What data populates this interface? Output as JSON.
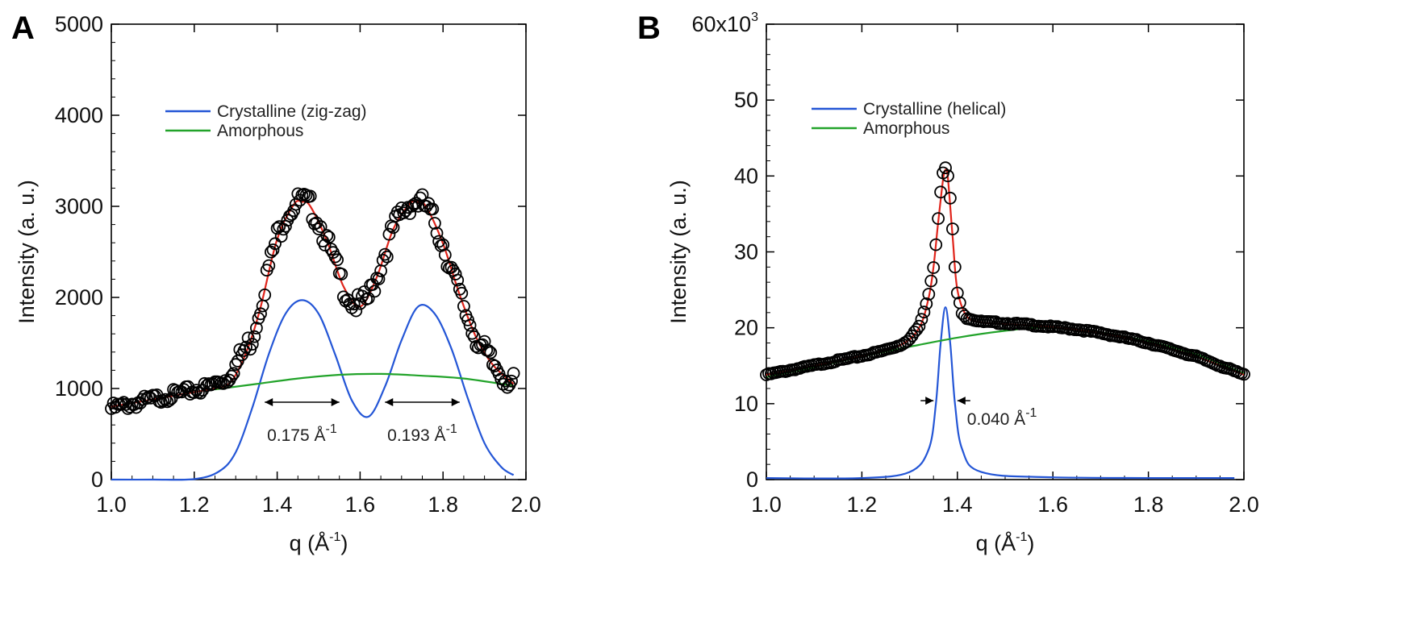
{
  "chart_data": [
    {
      "panel": "A",
      "type": "scatter",
      "xlabel": "q (Å",
      "xlabel_sup": "-1",
      "xlabel_close": ")",
      "ylabel": "Intensity (a. u.)",
      "xlim": [
        1.0,
        2.0
      ],
      "ylim": [
        0,
        5000
      ],
      "xticks": [
        1.0,
        1.2,
        1.4,
        1.6,
        1.8,
        2.0
      ],
      "xtick_labels": [
        "1.0",
        "1.2",
        "1.4",
        "1.6",
        "1.8",
        "2.0"
      ],
      "yticks": [
        0,
        1000,
        2000,
        3000,
        4000,
        5000
      ],
      "ytick_labels": [
        "0",
        "1000",
        "2000",
        "3000",
        "4000",
        "5000"
      ],
      "legend": {
        "placement": "upper-left",
        "entries": [
          {
            "label": "Crystalline (zig-zag)",
            "color": "#2456d6"
          },
          {
            "label": "Amorphous",
            "color": "#22a32a"
          }
        ]
      },
      "series": [
        {
          "kind": "data",
          "marker": "open-circle",
          "color": "#000000",
          "x": [
            1.0,
            1.02,
            1.04,
            1.06,
            1.08,
            1.1,
            1.12,
            1.14,
            1.16,
            1.18,
            1.2,
            1.22,
            1.24,
            1.26,
            1.28,
            1.34,
            1.36,
            1.38,
            1.4,
            1.42,
            1.44,
            1.46,
            1.48,
            1.5,
            1.52,
            1.54,
            1.56,
            1.58,
            1.6,
            1.62,
            1.64,
            1.66,
            1.68,
            1.7,
            1.72,
            1.74,
            1.76,
            1.78,
            1.8,
            1.82,
            1.84,
            1.86,
            1.88,
            1.9,
            1.92,
            1.94,
            1.96,
            1.97
          ],
          "y": [
            780,
            800,
            820,
            840,
            860,
            880,
            900,
            920,
            940,
            960,
            980,
            1000,
            1030,
            1080,
            1100,
            1560,
            1920,
            2330,
            2670,
            2890,
            3020,
            3060,
            3000,
            2840,
            2620,
            2360,
            2120,
            1950,
            1900,
            1990,
            2220,
            2500,
            2750,
            2930,
            3030,
            3050,
            2990,
            2820,
            2590,
            2310,
            2030,
            1770,
            1560,
            1400,
            1260,
            1170,
            1090,
            1050
          ]
        },
        {
          "kind": "fit",
          "color": "#e0241b",
          "x": [
            1.0,
            1.05,
            1.1,
            1.15,
            1.2,
            1.25,
            1.28,
            1.3,
            1.33,
            1.36,
            1.4,
            1.44,
            1.46,
            1.48,
            1.52,
            1.56,
            1.6,
            1.64,
            1.68,
            1.72,
            1.74,
            1.76,
            1.8,
            1.84,
            1.88,
            1.92,
            1.97
          ],
          "y": [
            800,
            840,
            880,
            920,
            960,
            1000,
            1040,
            1150,
            1450,
            1890,
            2640,
            3020,
            3050,
            3000,
            2620,
            2120,
            1900,
            2220,
            2750,
            3030,
            3050,
            2990,
            2590,
            2030,
            1560,
            1260,
            1050
          ]
        },
        {
          "kind": "component",
          "name": "Crystalline (zig-zag)",
          "color": "#2456d6",
          "x": [
            1.0,
            1.1,
            1.2,
            1.26,
            1.3,
            1.34,
            1.38,
            1.42,
            1.46,
            1.5,
            1.54,
            1.58,
            1.62,
            1.66,
            1.7,
            1.74,
            1.78,
            1.82,
            1.86,
            1.9,
            1.94,
            1.97
          ],
          "y": [
            0,
            0,
            5,
            90,
            300,
            790,
            1380,
            1820,
            1970,
            1820,
            1370,
            870,
            690,
            1020,
            1530,
            1900,
            1820,
            1440,
            890,
            400,
            140,
            50
          ]
        },
        {
          "kind": "component",
          "name": "Amorphous",
          "color": "#22a32a",
          "x": [
            1.25,
            1.35,
            1.45,
            1.55,
            1.65,
            1.75,
            1.85,
            1.97
          ],
          "y": [
            990,
            1050,
            1110,
            1150,
            1160,
            1140,
            1110,
            1030
          ]
        }
      ],
      "annotations": [
        {
          "text": "0.175 Å",
          "sup": "-1",
          "arrow_x": [
            1.37,
            1.55
          ],
          "y": 850
        },
        {
          "text": "0.193 Å",
          "sup": "-1",
          "arrow_x": [
            1.66,
            1.84
          ],
          "y": 850
        }
      ]
    },
    {
      "panel": "B",
      "type": "scatter",
      "xlabel": "q (Å",
      "xlabel_sup": "-1",
      "xlabel_close": ")",
      "ylabel": "Intensity (a. u.)",
      "xlim": [
        1.0,
        2.0
      ],
      "ylim": [
        0,
        60000
      ],
      "xticks": [
        1.0,
        1.2,
        1.4,
        1.6,
        1.8,
        2.0
      ],
      "xtick_labels": [
        "1.0",
        "1.2",
        "1.4",
        "1.6",
        "1.8",
        "2.0"
      ],
      "yticks": [
        0,
        10000,
        20000,
        30000,
        40000,
        50000,
        60000
      ],
      "ytick_labels": [
        "0",
        "10",
        "20",
        "30",
        "40",
        "50",
        "60x10"
      ],
      "ytick_top_sup": "3",
      "legend": {
        "placement": "upper-left",
        "entries": [
          {
            "label": "Crystalline (helical)",
            "color": "#2456d6"
          },
          {
            "label": "Amorphous",
            "color": "#22a32a"
          }
        ]
      },
      "series": [
        {
          "kind": "data",
          "marker": "open-circle",
          "color": "#000000",
          "x": [
            1.0,
            1.04,
            1.08,
            1.12,
            1.16,
            1.2,
            1.24,
            1.28,
            1.3,
            1.32,
            1.33,
            1.34,
            1.35,
            1.355,
            1.36,
            1.365,
            1.37,
            1.375,
            1.38,
            1.385,
            1.39,
            1.395,
            1.4,
            1.41,
            1.42,
            1.45,
            1.5,
            1.55,
            1.6,
            1.65,
            1.7,
            1.75,
            1.8,
            1.85,
            1.9,
            1.95,
            2.0
          ],
          "y": [
            13800,
            14300,
            14800,
            15300,
            15800,
            16300,
            16900,
            17700,
            18500,
            20200,
            22000,
            24500,
            28000,
            31000,
            34500,
            38000,
            40500,
            41000,
            40000,
            37000,
            33000,
            28000,
            24500,
            22000,
            21300,
            20800,
            20600,
            20400,
            20100,
            19800,
            19300,
            18700,
            18000,
            17100,
            16200,
            15000,
            13800
          ]
        },
        {
          "kind": "fit",
          "color": "#e0241b",
          "x": [
            1.0,
            1.1,
            1.2,
            1.28,
            1.32,
            1.34,
            1.35,
            1.36,
            1.37,
            1.375,
            1.38,
            1.39,
            1.4,
            1.42,
            1.45,
            1.5,
            1.55,
            1.6,
            1.7,
            1.8,
            1.9,
            2.0
          ],
          "y": [
            13800,
            15000,
            16300,
            17700,
            20000,
            24000,
            28000,
            34000,
            39500,
            40800,
            39800,
            32000,
            25000,
            21500,
            20700,
            20500,
            20300,
            20100,
            19300,
            18000,
            16200,
            13800
          ]
        },
        {
          "kind": "component",
          "name": "Crystalline (helical)",
          "color": "#2456d6",
          "x": [
            1.0,
            1.2,
            1.3,
            1.34,
            1.355,
            1.365,
            1.375,
            1.385,
            1.395,
            1.41,
            1.45,
            1.6,
            1.98
          ],
          "y": [
            200,
            200,
            1000,
            4000,
            10000,
            18000,
            22700,
            18000,
            10000,
            4000,
            1000,
            300,
            200
          ]
        },
        {
          "kind": "component",
          "name": "Amorphous",
          "color": "#22a32a",
          "x": [
            1.0,
            1.1,
            1.2,
            1.3,
            1.4,
            1.5,
            1.58,
            1.7,
            1.8,
            1.9,
            2.0
          ],
          "y": [
            13500,
            14800,
            16200,
            17500,
            18700,
            19600,
            20000,
            19400,
            18200,
            16500,
            14000
          ]
        }
      ],
      "annotations": [
        {
          "text": "0.040 Å",
          "sup": "-1",
          "arrow_x": [
            1.35,
            1.4
          ],
          "y": 10400
        }
      ]
    }
  ]
}
